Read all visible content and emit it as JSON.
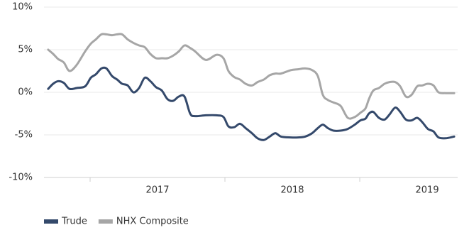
{
  "chart_data": {
    "type": "line",
    "x": [
      2016.689,
      2016.726,
      2016.763,
      2016.805,
      2016.847,
      2016.9,
      2016.963,
      2017.005,
      2017.042,
      2017.084,
      2017.121,
      2017.163,
      2017.2,
      2017.237,
      2017.279,
      2017.321,
      2017.363,
      2017.405,
      2017.447,
      2017.489,
      2017.532,
      2017.574,
      2017.616,
      2017.658,
      2017.7,
      2017.742,
      2017.779,
      2017.858,
      2017.937,
      2017.989,
      2018.026,
      2018.068,
      2018.111,
      2018.153,
      2018.2,
      2018.242,
      2018.289,
      2018.332,
      2018.374,
      2018.416,
      2018.489,
      2018.542,
      2018.595,
      2018.647,
      2018.689,
      2018.726,
      2018.763,
      2018.805,
      2018.858,
      2018.911,
      2018.963,
      2019.005,
      2019.042,
      2019.068,
      2019.1,
      2019.142,
      2019.184,
      2019.221,
      2019.263,
      2019.3,
      2019.342,
      2019.384,
      2019.426,
      2019.463,
      2019.505,
      2019.547,
      2019.584,
      2019.637,
      2019.7
    ],
    "series": [
      {
        "name": "Trude",
        "color": "#34496b",
        "values": [
          0.4,
          1.0,
          1.3,
          1.1,
          0.4,
          0.5,
          0.7,
          1.7,
          2.1,
          2.8,
          2.8,
          1.9,
          1.5,
          1.0,
          0.8,
          0,
          0.5,
          1.7,
          1.3,
          0.6,
          0.2,
          -0.8,
          -1.0,
          -0.5,
          -0.5,
          -2.5,
          -2.8,
          -2.7,
          -2.7,
          -2.9,
          -4.0,
          -4.1,
          -3.7,
          -4.2,
          -4.8,
          -5.4,
          -5.6,
          -5.2,
          -4.8,
          -5.2,
          -5.3,
          -5.3,
          -5.2,
          -4.8,
          -4.2,
          -3.8,
          -4.2,
          -4.5,
          -4.5,
          -4.3,
          -3.8,
          -3.3,
          -3.1,
          -2.5,
          -2.3,
          -3.0,
          -3.2,
          -2.6,
          -1.8,
          -2.3,
          -3.2,
          -3.3,
          -3.0,
          -3.5,
          -4.3,
          -4.6,
          -5.3,
          -5.4,
          -5.2
        ]
      },
      {
        "name": "NHX Composite",
        "color": "#a6a6a6",
        "values": [
          5.0,
          4.5,
          3.9,
          3.5,
          2.5,
          3.2,
          4.8,
          5.7,
          6.2,
          6.8,
          6.8,
          6.7,
          6.8,
          6.8,
          6.2,
          5.8,
          5.5,
          5.3,
          4.5,
          4.0,
          4.0,
          4.0,
          4.3,
          4.8,
          5.5,
          5.2,
          4.8,
          3.8,
          4.4,
          4.0,
          2.5,
          1.8,
          1.5,
          1.0,
          0.8,
          1.2,
          1.5,
          2.0,
          2.2,
          2.2,
          2.6,
          2.7,
          2.8,
          2.6,
          1.9,
          -0.3,
          -0.9,
          -1.2,
          -1.6,
          -3.0,
          -2.9,
          -2.4,
          -1.9,
          -0.8,
          0.2,
          0.5,
          1.0,
          1.2,
          1.2,
          0.7,
          -0.5,
          -0.3,
          0.7,
          0.8,
          1.0,
          0.8,
          0,
          -0.1,
          -0.1
        ]
      }
    ],
    "xlim": [
      2016.658,
      2019.726
    ],
    "xticks": [
      2017,
      2018,
      2019
    ],
    "ylim": [
      -10,
      10
    ],
    "yticks": [
      {
        "value": -10,
        "label": "-10%"
      },
      {
        "value": -5,
        "label": "-5%"
      },
      {
        "value": 0,
        "label": "0%"
      },
      {
        "value": 5,
        "label": "5%"
      },
      {
        "value": 10,
        "label": "10%"
      }
    ],
    "grid": true
  }
}
